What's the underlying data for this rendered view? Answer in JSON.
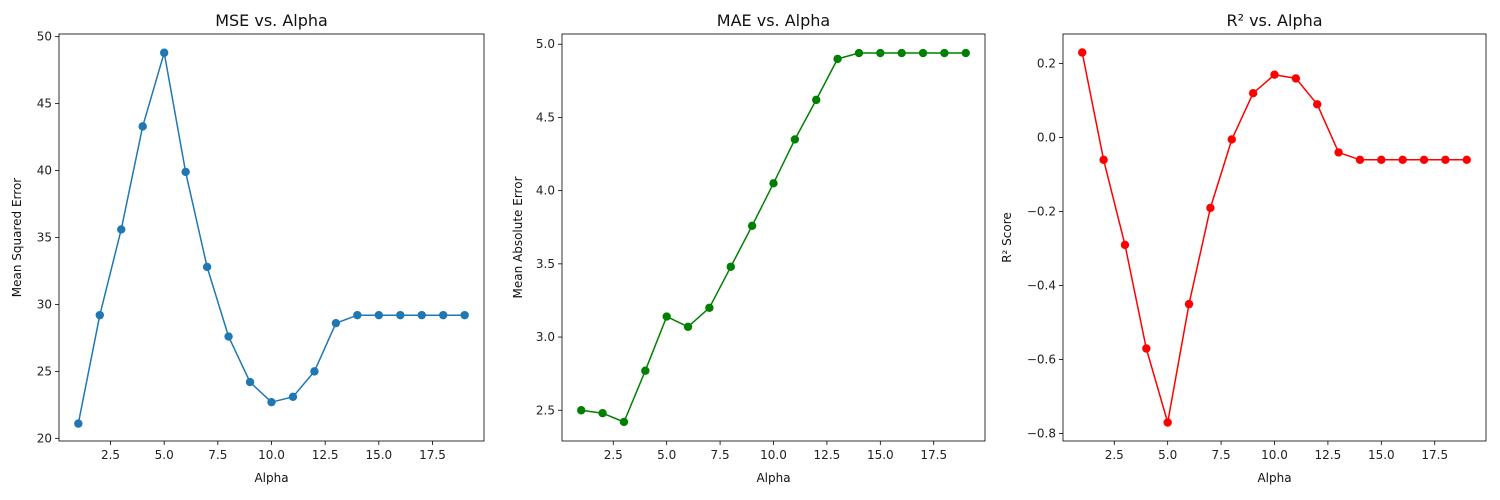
{
  "chart_data": [
    {
      "type": "line",
      "title": "MSE vs. Alpha",
      "xlabel": "Alpha",
      "ylabel": "Mean Squared Error",
      "color": "#1f77b4",
      "xlim": [
        0.1,
        19.9
      ],
      "ylim": [
        19.8,
        50.2
      ],
      "xticks": [
        2.5,
        5.0,
        7.5,
        10.0,
        12.5,
        15.0,
        17.5
      ],
      "yticks": [
        20,
        25,
        30,
        35,
        40,
        45,
        50
      ],
      "tick_decimals_x": 1,
      "tick_decimals_y": 0,
      "x": [
        1,
        2,
        3,
        4,
        5,
        6,
        7,
        8,
        9,
        10,
        11,
        12,
        13,
        14,
        15,
        16,
        17,
        18,
        19
      ],
      "y": [
        21.1,
        29.2,
        35.6,
        43.3,
        48.8,
        39.9,
        32.8,
        27.6,
        24.2,
        22.7,
        23.1,
        25.0,
        28.6,
        29.2,
        29.2,
        29.2,
        29.2,
        29.2,
        29.2
      ]
    },
    {
      "type": "line",
      "title": "MAE vs. Alpha",
      "xlabel": "Alpha",
      "ylabel": "Mean Absolute Error",
      "color": "#008000",
      "xlim": [
        0.1,
        19.9
      ],
      "ylim": [
        2.29,
        5.07
      ],
      "xticks": [
        2.5,
        5.0,
        7.5,
        10.0,
        12.5,
        15.0,
        17.5
      ],
      "yticks": [
        2.5,
        3.0,
        3.5,
        4.0,
        4.5,
        5.0
      ],
      "tick_decimals_x": 1,
      "tick_decimals_y": 1,
      "x": [
        1,
        2,
        3,
        4,
        5,
        6,
        7,
        8,
        9,
        10,
        11,
        12,
        13,
        14,
        15,
        16,
        17,
        18,
        19
      ],
      "y": [
        2.5,
        2.48,
        2.42,
        2.77,
        3.14,
        3.07,
        3.2,
        3.48,
        3.76,
        4.05,
        4.35,
        4.62,
        4.9,
        4.94,
        4.94,
        4.94,
        4.94,
        4.94,
        4.94
      ]
    },
    {
      "type": "line",
      "title": "R² vs. Alpha",
      "xlabel": "Alpha",
      "ylabel": "R² Score",
      "color": "#ff0000",
      "xlim": [
        0.1,
        19.9
      ],
      "ylim": [
        -0.82,
        0.28
      ],
      "xticks": [
        2.5,
        5.0,
        7.5,
        10.0,
        12.5,
        15.0,
        17.5
      ],
      "yticks": [
        -0.8,
        -0.6,
        -0.4,
        -0.2,
        0.0,
        0.2
      ],
      "tick_decimals_x": 1,
      "tick_decimals_y": 1,
      "x": [
        1,
        2,
        3,
        4,
        5,
        6,
        7,
        8,
        9,
        10,
        11,
        12,
        13,
        14,
        15,
        16,
        17,
        18,
        19
      ],
      "y": [
        0.23,
        -0.06,
        -0.29,
        -0.57,
        -0.77,
        -0.45,
        -0.19,
        -0.005,
        0.12,
        0.17,
        0.16,
        0.09,
        -0.04,
        -0.06,
        -0.06,
        -0.06,
        -0.06,
        -0.06,
        -0.06
      ]
    }
  ]
}
